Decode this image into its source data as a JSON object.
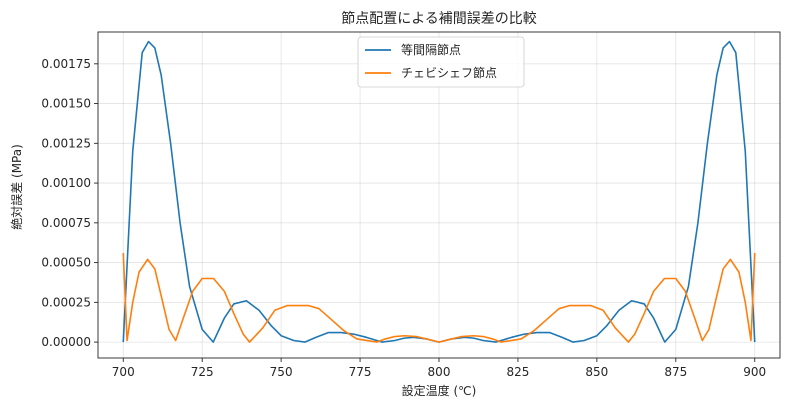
{
  "chart_data": {
    "type": "line",
    "title": "節点配置による補間誤差の比較",
    "xlabel": "設定温度 (℃)",
    "ylabel": "絶対誤差 (MPa)",
    "xlim": [
      692,
      908
    ],
    "ylim": [
      -0.0001,
      0.00195
    ],
    "xticks": [
      700,
      725,
      750,
      775,
      800,
      825,
      850,
      875,
      900
    ],
    "xtick_labels": [
      "700",
      "725",
      "750",
      "775",
      "800",
      "825",
      "850",
      "875",
      "900"
    ],
    "yticks": [
      0,
      0.00025,
      0.0005,
      0.00075,
      0.001,
      0.00125,
      0.0015,
      0.00175
    ],
    "ytick_labels": [
      "0.00000",
      "0.00025",
      "0.00050",
      "0.00075",
      "0.00100",
      "0.00125",
      "0.00150",
      "0.00175"
    ],
    "grid": true,
    "legend_position": "top-center",
    "series": [
      {
        "name": "等間隔節点",
        "color": "#1f77b4",
        "x": [
          700,
          703,
          706,
          708,
          710,
          712,
          715,
          718,
          721,
          725,
          728.5,
          732,
          735,
          739,
          743,
          747,
          750,
          754,
          757.5,
          761,
          765,
          769,
          773,
          777,
          782,
          786,
          789,
          792,
          796,
          800,
          804,
          808,
          811,
          814,
          818,
          823,
          827,
          831,
          835,
          839,
          842.5,
          846,
          850,
          853,
          857,
          861,
          865,
          868,
          871.5,
          875,
          879,
          882,
          885,
          888,
          890,
          892,
          894,
          897,
          900
        ],
        "y": [
          0,
          0.0012,
          0.00182,
          0.00189,
          0.00185,
          0.00168,
          0.00125,
          0.00075,
          0.00035,
          8e-05,
          0,
          0.00015,
          0.00024,
          0.00026,
          0.0002,
          0.0001,
          4e-05,
          1e-05,
          0,
          3e-05,
          6e-05,
          6e-05,
          5e-05,
          3e-05,
          0,
          1e-05,
          2.5e-05,
          3e-05,
          2e-05,
          0,
          2e-05,
          3e-05,
          2.5e-05,
          1e-05,
          0,
          3e-05,
          5e-05,
          6e-05,
          6e-05,
          3e-05,
          0,
          1e-05,
          4e-05,
          0.0001,
          0.0002,
          0.00026,
          0.00024,
          0.00015,
          0,
          8e-05,
          0.00035,
          0.00075,
          0.00125,
          0.00168,
          0.00185,
          0.00189,
          0.00182,
          0.0012,
          0
        ]
      },
      {
        "name": "チェビシェフ節点",
        "color": "#ff7f0e",
        "x": [
          700,
          701.2,
          703,
          705,
          707.7,
          710,
          712.5,
          714.5,
          716.6,
          719,
          722,
          725,
          728.6,
          732,
          735,
          738,
          740,
          744.2,
          748,
          752,
          755,
          758.6,
          762,
          766,
          770,
          774,
          780.3,
          783,
          786,
          789,
          792.8,
          796,
          800,
          804,
          807.2,
          811,
          814,
          817,
          819.7,
          826,
          830,
          834,
          838,
          841.4,
          845,
          848,
          852,
          855.8,
          860,
          862,
          865,
          868,
          871.4,
          875,
          878,
          881,
          883.4,
          885.5,
          887.5,
          890,
          892.3,
          895,
          897,
          898.8,
          900
        ],
        "y": [
          0.00056,
          1e-05,
          0.00025,
          0.00044,
          0.00052,
          0.00046,
          0.00025,
          8e-05,
          1e-05,
          0.00015,
          0.00032,
          0.0004,
          0.0004,
          0.00032,
          0.00018,
          5e-05,
          0,
          9e-05,
          0.0002,
          0.00023,
          0.00023,
          0.00023,
          0.00021,
          0.00014,
          7e-05,
          2e-05,
          0,
          2e-05,
          3.5e-05,
          4e-05,
          3.5e-05,
          2e-05,
          0,
          2e-05,
          3.5e-05,
          4e-05,
          3.5e-05,
          2e-05,
          0,
          2e-05,
          7e-05,
          0.00014,
          0.00021,
          0.00023,
          0.00023,
          0.00023,
          0.0002,
          9e-05,
          0,
          5e-05,
          0.00018,
          0.00032,
          0.0004,
          0.0004,
          0.00032,
          0.00015,
          1e-05,
          8e-05,
          0.00025,
          0.00046,
          0.00052,
          0.00044,
          0.00025,
          1e-05,
          0.00056
        ]
      }
    ]
  }
}
